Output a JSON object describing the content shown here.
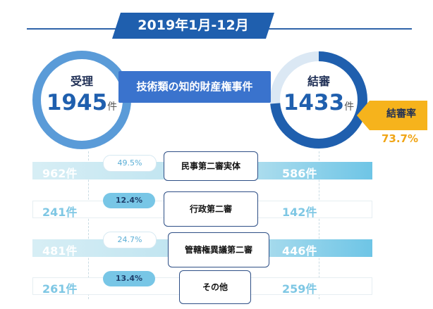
{
  "header": {
    "title": "2019年1月-12月"
  },
  "center_label": "技術類の知的財産権事件",
  "received": {
    "label": "受理",
    "value": "1945",
    "unit": "件"
  },
  "concluded": {
    "label": "結審",
    "value": "1433",
    "unit": "件",
    "progress_fraction": 0.737
  },
  "rate": {
    "label": "結審率",
    "value": "73.7%"
  },
  "rows": [
    {
      "category": "民事第二審実体",
      "left": "962件",
      "right": "586件",
      "percent": "49.5%"
    },
    {
      "category": "行政第二審",
      "left": "241件",
      "right": "142件",
      "percent": "12.4%"
    },
    {
      "category": "管轄権異議第二審",
      "left": "481件",
      "right": "446件",
      "percent": "24.7%"
    },
    {
      "category": "その他",
      "left": "261件",
      "right": "259件",
      "percent": "13.4%"
    }
  ],
  "colors": {
    "navy": "#1f5fae",
    "accent": "#f6b31c",
    "light_blue": "#78c6e6"
  }
}
